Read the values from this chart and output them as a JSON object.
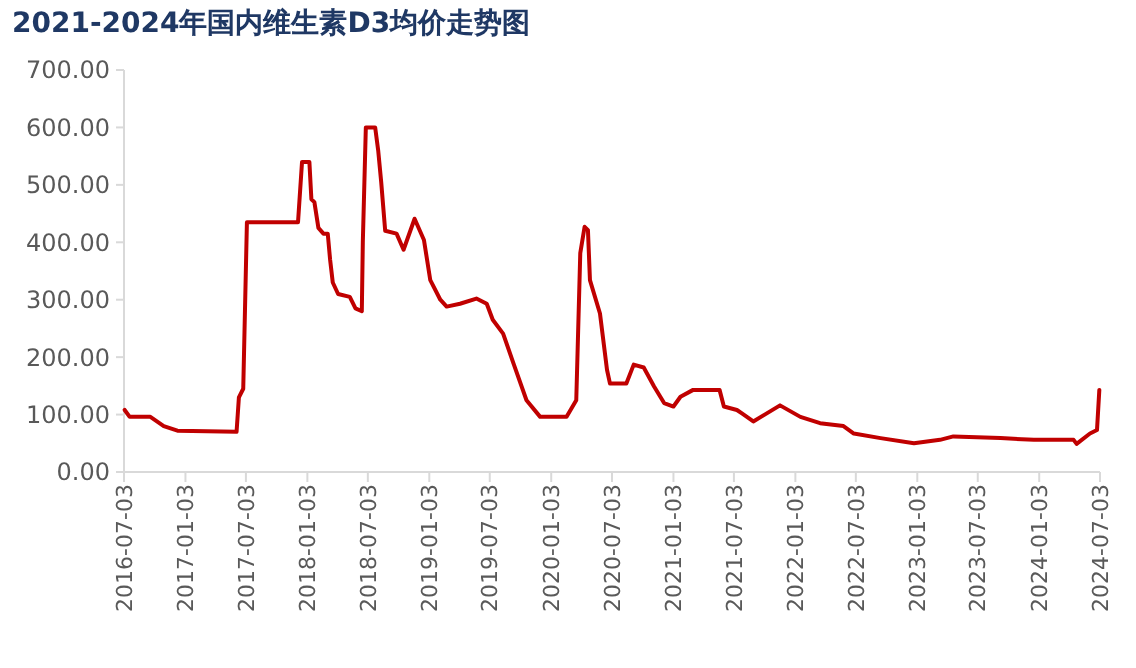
{
  "chart_data": {
    "type": "line",
    "title": "2021-2024年国内维生素D3均价走势图",
    "xlim": [
      "2016-07-03",
      "2024-07-03"
    ],
    "xticks": [
      "2016-07-03",
      "2017-01-03",
      "2017-07-03",
      "2018-01-03",
      "2018-07-03",
      "2019-01-03",
      "2019-07-03",
      "2020-01-03",
      "2020-07-03",
      "2021-01-03",
      "2021-07-03",
      "2022-01-03",
      "2022-07-03",
      "2023-01-03",
      "2023-07-03",
      "2024-01-03",
      "2024-07-03"
    ],
    "ylim": [
      0,
      700
    ],
    "yticks": [
      {
        "value": 0,
        "label": "0.00"
      },
      {
        "value": 100,
        "label": "100.00"
      },
      {
        "value": 200,
        "label": "200.00"
      },
      {
        "value": 300,
        "label": "300.00"
      },
      {
        "value": 400,
        "label": "400.00"
      },
      {
        "value": 500,
        "label": "500.00"
      },
      {
        "value": 600,
        "label": "600.00"
      },
      {
        "value": 700,
        "label": "700.00"
      }
    ],
    "grid": false,
    "marker": "none",
    "line_style": "solid",
    "series": [
      {
        "color": "#c00000",
        "x": [
          "2016-07-05",
          "2016-07-20",
          "2016-09-20",
          "2016-10-30",
          "2016-12-10",
          "2017-06-05",
          "2017-06-12",
          "2017-06-25",
          "2017-07-06",
          "2017-12-06",
          "2017-12-18",
          "2018-01-09",
          "2018-01-15",
          "2018-01-24",
          "2018-02-05",
          "2018-02-20",
          "2018-03-05",
          "2018-03-12",
          "2018-03-20",
          "2018-04-05",
          "2018-05-10",
          "2018-05-27",
          "2018-06-15",
          "2018-06-18",
          "2018-06-27",
          "2018-07-25",
          "2018-08-03",
          "2018-08-12",
          "2018-08-24",
          "2018-09-27",
          "2018-10-18",
          "2018-11-20",
          "2018-12-18",
          "2019-01-06",
          "2019-02-05",
          "2019-02-24",
          "2019-04-05",
          "2019-05-24",
          "2019-06-24",
          "2019-07-12",
          "2019-08-12",
          "2019-09-12",
          "2019-10-21",
          "2019-12-01",
          "2020-02-18",
          "2020-03-18",
          "2020-03-30",
          "2020-04-12",
          "2020-04-22",
          "2020-04-28",
          "2020-05-28",
          "2020-06-18",
          "2020-06-27",
          "2020-08-15",
          "2020-09-06",
          "2020-10-06",
          "2020-11-06",
          "2020-12-06",
          "2021-01-03",
          "2021-01-24",
          "2021-03-03",
          "2021-05-21",
          "2021-06-03",
          "2021-07-12",
          "2021-07-27",
          "2021-08-30",
          "2021-11-18",
          "2022-01-18",
          "2022-03-18",
          "2022-05-27",
          "2022-06-27",
          "2022-09-15",
          "2022-12-24",
          "2023-03-12",
          "2023-04-21",
          "2023-09-09",
          "2023-12-18",
          "2024-04-15",
          "2024-04-24",
          "2024-06-03",
          "2024-06-24",
          "2024-07-01"
        ],
        "values": [
          108,
          96,
          96,
          80,
          72,
          70,
          130,
          145,
          435,
          435,
          540,
          540,
          475,
          470,
          425,
          415,
          415,
          370,
          330,
          310,
          305,
          285,
          280,
          400,
          600,
          600,
          560,
          505,
          420,
          415,
          387,
          441,
          404,
          334,
          300,
          288,
          293,
          302,
          293,
          265,
          241,
          189,
          125,
          96,
          96,
          125,
          381,
          427,
          421,
          334,
          276,
          178,
          154,
          154,
          187,
          182,
          149,
          120,
          114,
          131,
          143,
          143,
          114,
          108,
          102,
          88,
          116,
          96,
          85,
          80,
          67,
          59,
          50,
          56,
          62,
          59,
          56,
          56,
          49,
          67,
          73,
          143
        ]
      }
    ]
  }
}
